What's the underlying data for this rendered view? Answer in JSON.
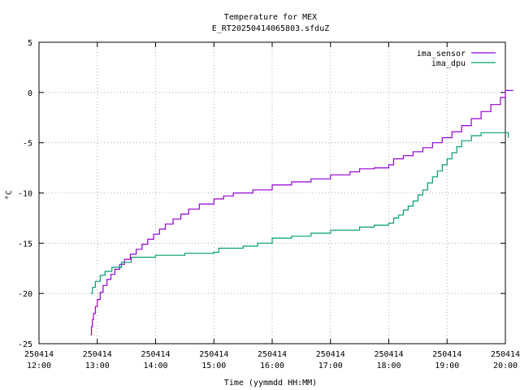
{
  "chart_data": {
    "type": "line",
    "title": "Temperature for MEX",
    "subtitle": "E_RT20250414065803.sfduZ",
    "xlabel": "Time (yymmdd HH:MM)",
    "ylabel": "°C",
    "xlim": [
      "250414 12:00",
      "250414 20:00"
    ],
    "ylim": [
      -25,
      5
    ],
    "grid": true,
    "legend_position": "top-right",
    "x_ticks": [
      {
        "date": "250414",
        "time": "12:00"
      },
      {
        "date": "250414",
        "time": "13:00"
      },
      {
        "date": "250414",
        "time": "14:00"
      },
      {
        "date": "250414",
        "time": "15:00"
      },
      {
        "date": "250414",
        "time": "16:00"
      },
      {
        "date": "250414",
        "time": "17:00"
      },
      {
        "date": "250414",
        "time": "18:00"
      },
      {
        "date": "250414",
        "time": "19:00"
      },
      {
        "date": "250414",
        "time": "20:00"
      }
    ],
    "y_ticks": [
      "5",
      "0",
      "-5",
      "-10",
      "-15",
      "-20",
      "-25"
    ],
    "series": [
      {
        "name": "ima_sensor",
        "color": "#9400d3",
        "points": [
          [
            "12:53",
            -24.1
          ],
          [
            "12:54",
            -23.3
          ],
          [
            "12:55",
            -22.6
          ],
          [
            "12:56",
            -22.0
          ],
          [
            "12:58",
            -21.3
          ],
          [
            "13:00",
            -20.6
          ],
          [
            "13:03",
            -19.9
          ],
          [
            "13:06",
            -19.2
          ],
          [
            "13:10",
            -18.6
          ],
          [
            "13:14",
            -18.1
          ],
          [
            "13:18",
            -17.6
          ],
          [
            "13:23",
            -17.1
          ],
          [
            "13:28",
            -16.6
          ],
          [
            "13:34",
            -16.1
          ],
          [
            "13:40",
            -15.6
          ],
          [
            "13:46",
            -15.1
          ],
          [
            "13:52",
            -14.6
          ],
          [
            "13:58",
            -14.1
          ],
          [
            "14:04",
            -13.6
          ],
          [
            "14:10",
            -13.1
          ],
          [
            "14:18",
            -12.6
          ],
          [
            "14:26",
            -12.1
          ],
          [
            "14:34",
            -11.6
          ],
          [
            "14:45",
            -11.1
          ],
          [
            "15:00",
            -10.6
          ],
          [
            "15:10",
            -10.3
          ],
          [
            "15:20",
            -10.0
          ],
          [
            "15:40",
            -9.7
          ],
          [
            "16:00",
            -9.2
          ],
          [
            "16:20",
            -8.9
          ],
          [
            "16:40",
            -8.6
          ],
          [
            "17:00",
            -8.2
          ],
          [
            "17:20",
            -7.9
          ],
          [
            "17:30",
            -7.6
          ],
          [
            "17:45",
            -7.5
          ],
          [
            "18:00",
            -7.2
          ],
          [
            "18:05",
            -6.6
          ],
          [
            "18:15",
            -6.3
          ],
          [
            "18:25",
            -5.9
          ],
          [
            "18:35",
            -5.5
          ],
          [
            "18:45",
            -5.0
          ],
          [
            "18:55",
            -4.5
          ],
          [
            "19:05",
            -3.9
          ],
          [
            "19:15",
            -3.3
          ],
          [
            "19:25",
            -2.6
          ],
          [
            "19:35",
            -1.9
          ],
          [
            "19:45",
            -1.2
          ],
          [
            "19:55",
            -0.5
          ],
          [
            "20:00",
            0.2
          ],
          [
            "20:08",
            0.2
          ]
        ]
      },
      {
        "name": "ima_dpu",
        "color": "#009e73",
        "points": [
          [
            "12:53",
            -20.0
          ],
          [
            "12:55",
            -19.4
          ],
          [
            "12:58",
            -18.8
          ],
          [
            "13:03",
            -18.2
          ],
          [
            "13:08",
            -17.8
          ],
          [
            "13:15",
            -17.4
          ],
          [
            "13:25",
            -16.9
          ],
          [
            "13:35",
            -16.4
          ],
          [
            "14:00",
            -16.2
          ],
          [
            "14:30",
            -16.0
          ],
          [
            "15:00",
            -15.9
          ],
          [
            "15:05",
            -15.5
          ],
          [
            "15:30",
            -15.3
          ],
          [
            "15:45",
            -15.0
          ],
          [
            "16:00",
            -14.5
          ],
          [
            "16:20",
            -14.3
          ],
          [
            "16:40",
            -14.0
          ],
          [
            "17:00",
            -13.7
          ],
          [
            "17:30",
            -13.4
          ],
          [
            "17:45",
            -13.2
          ],
          [
            "18:00",
            -13.0
          ],
          [
            "18:05",
            -12.5
          ],
          [
            "18:10",
            -12.2
          ],
          [
            "18:15",
            -11.7
          ],
          [
            "18:20",
            -11.3
          ],
          [
            "18:25",
            -10.8
          ],
          [
            "18:30",
            -10.2
          ],
          [
            "18:35",
            -9.7
          ],
          [
            "18:40",
            -9.0
          ],
          [
            "18:45",
            -8.4
          ],
          [
            "18:50",
            -7.8
          ],
          [
            "18:55",
            -7.2
          ],
          [
            "19:00",
            -6.6
          ],
          [
            "19:05",
            -6.0
          ],
          [
            "19:10",
            -5.4
          ],
          [
            "19:15",
            -4.8
          ],
          [
            "19:25",
            -4.3
          ],
          [
            "19:35",
            -4.0
          ],
          [
            "20:00",
            -4.0
          ],
          [
            "20:03",
            -4.5
          ]
        ]
      }
    ]
  }
}
